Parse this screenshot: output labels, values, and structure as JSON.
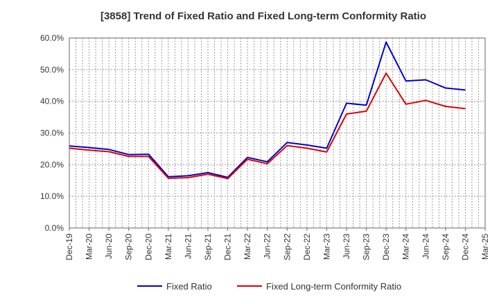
{
  "chart_data": {
    "type": "line",
    "title": "[3858]  Trend of Fixed Ratio and Fixed Long-term Conformity Ratio",
    "xlabel": "",
    "ylabel": "",
    "categories": [
      "Dec-19",
      "Mar-20",
      "Jun-20",
      "Sep-20",
      "Dec-20",
      "Mar-21",
      "Jun-21",
      "Sep-21",
      "Dec-21",
      "Mar-22",
      "Jun-22",
      "Sep-22",
      "Dec-22",
      "Mar-23",
      "Jun-23",
      "Sep-23",
      "Dec-23",
      "Mar-24",
      "Jun-24",
      "Sep-24",
      "Dec-24",
      "Mar-25"
    ],
    "ylim": [
      0,
      60
    ],
    "yticks": [
      0,
      10,
      20,
      30,
      40,
      50,
      60
    ],
    "ytick_labels": [
      "0.0%",
      "10.0%",
      "20.0%",
      "30.0%",
      "40.0%",
      "50.0%",
      "60.0%"
    ],
    "grid": true,
    "legend_position": "bottom",
    "series": [
      {
        "name": "Fixed Ratio",
        "color": "#0000cc",
        "values": [
          25.9,
          25.4,
          24.8,
          23.2,
          23.3,
          16.2,
          16.5,
          17.5,
          16.0,
          22.3,
          20.9,
          27.0,
          26.2,
          25.2,
          39.4,
          38.8,
          58.7,
          46.4,
          46.8,
          44.2,
          43.6,
          null
        ]
      },
      {
        "name": "Fixed Long-term Conformity Ratio",
        "color": "#dd0000",
        "values": [
          25.2,
          24.6,
          24.1,
          22.6,
          22.6,
          15.7,
          15.9,
          17.0,
          15.6,
          21.7,
          20.3,
          26.0,
          25.2,
          24.0,
          36.0,
          36.9,
          48.9,
          39.1,
          40.3,
          38.4,
          37.7,
          null
        ]
      }
    ]
  }
}
